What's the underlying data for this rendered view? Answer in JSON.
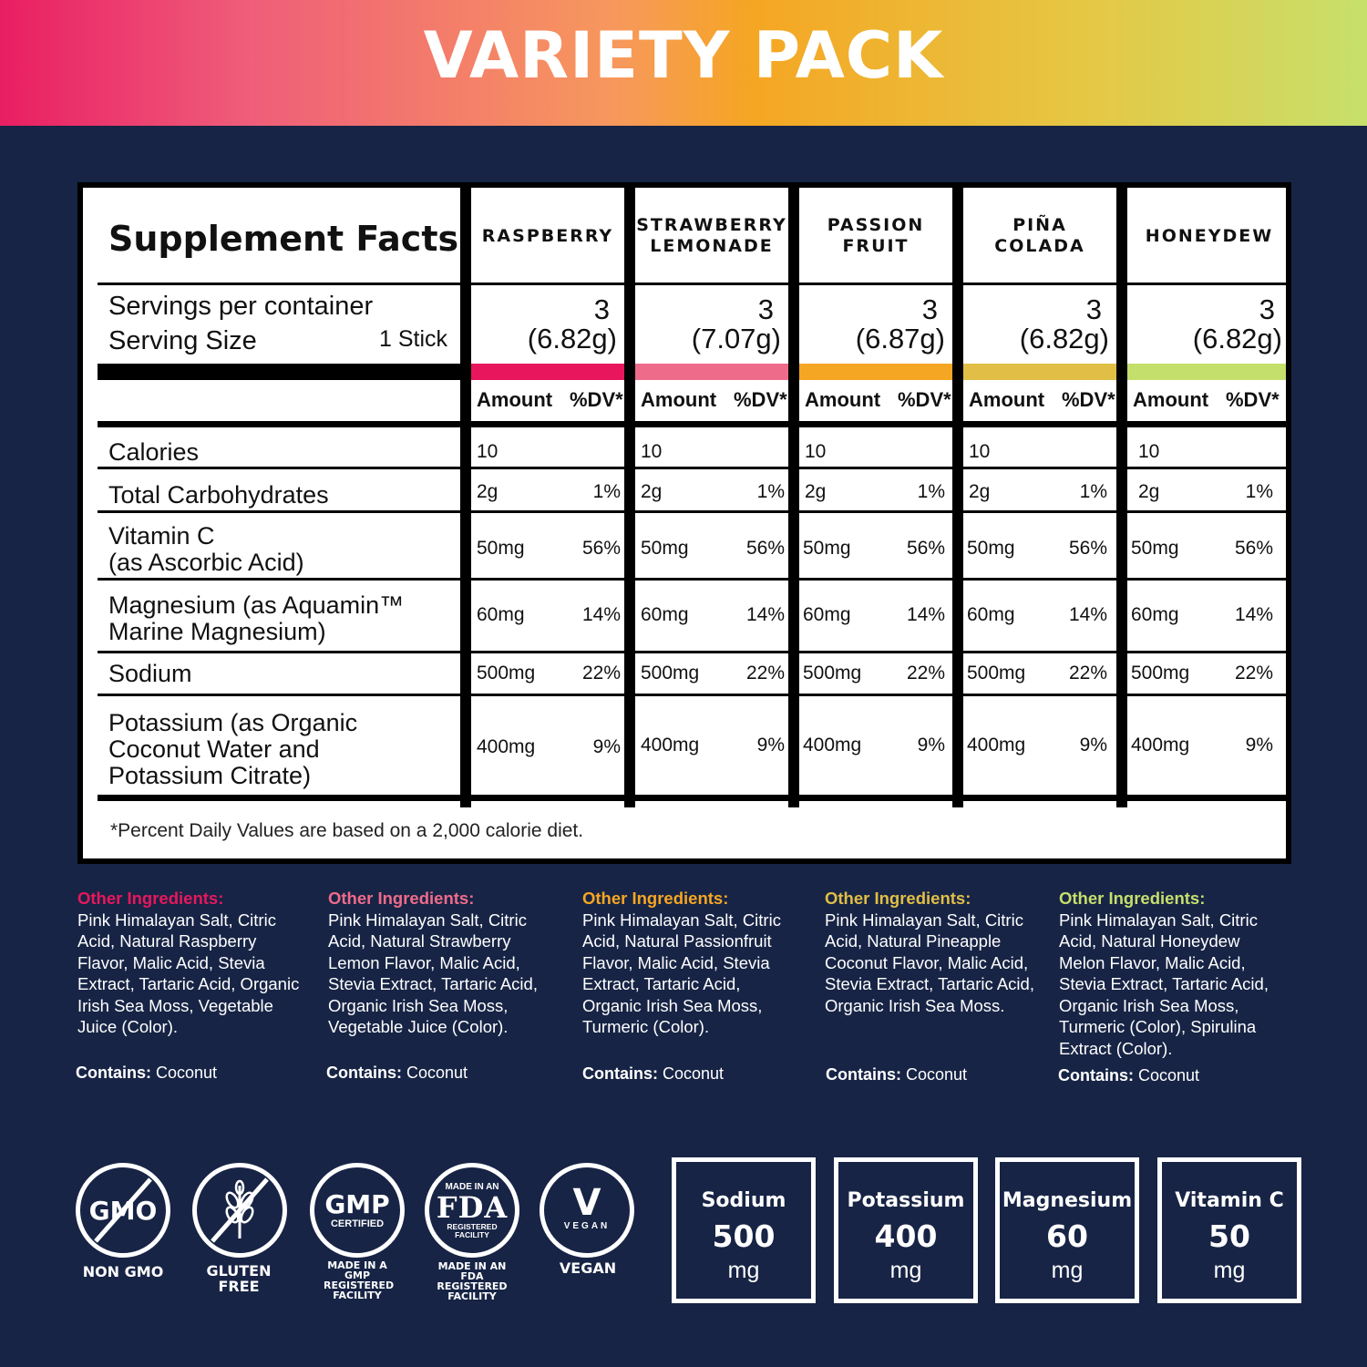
{
  "banner": {
    "title": "VARIETY PACK"
  },
  "facts": {
    "title": "Supplement Facts",
    "servings_label": "Servings per container",
    "serving_size_label": "Serving Size",
    "serving_size_value": "1 Stick",
    "amount_label": "Amount",
    "dv_label": "%DV*",
    "rows": [
      "Calories",
      "Total Carbohydrates",
      "Vitamin C",
      "(as Ascorbic Acid)",
      "Magnesium (as Aquamin™",
      "Marine Magnesium)",
      "Sodium",
      "Potassium (as Organic",
      "Coconut Water and",
      "Potassium Citrate)"
    ],
    "flavors": [
      {
        "name": "RASPBERRY",
        "servings": "3",
        "size": "(6.82g)",
        "color": "#e8175d",
        "calories": "10",
        "carbs": "2g",
        "carbs_dv": "1%",
        "vitc": "50mg",
        "vitc_dv": "56%",
        "mag": "60mg",
        "mag_dv": "14%",
        "sodium": "500mg",
        "sodium_dv": "22%",
        "potassium": "400mg",
        "potassium_dv": "9%"
      },
      {
        "name": "STRAWBERRY LEMONADE",
        "servings": "3",
        "size": "(7.07g)",
        "color": "#ef6b8a",
        "calories": "10",
        "carbs": "2g",
        "carbs_dv": "1%",
        "vitc": "50mg",
        "vitc_dv": "56%",
        "mag": "60mg",
        "mag_dv": "14%",
        "sodium": "500mg",
        "sodium_dv": "22%",
        "potassium": "400mg",
        "potassium_dv": "9%"
      },
      {
        "name": "PASSION FRUIT",
        "servings": "3",
        "size": "(6.87g)",
        "color": "#f5a623",
        "calories": "10",
        "carbs": "2g",
        "carbs_dv": "1%",
        "vitc": "50mg",
        "vitc_dv": "56%",
        "mag": "60mg",
        "mag_dv": "14%",
        "sodium": "500mg",
        "sodium_dv": "22%",
        "potassium": "400mg",
        "potassium_dv": "9%"
      },
      {
        "name": "PIÑA COLADA",
        "servings": "3",
        "size": "(6.82g)",
        "color": "#e1be45",
        "calories": "10",
        "carbs": "2g",
        "carbs_dv": "1%",
        "vitc": "50mg",
        "vitc_dv": "56%",
        "mag": "60mg",
        "mag_dv": "14%",
        "sodium": "500mg",
        "sodium_dv": "22%",
        "potassium": "400mg",
        "potassium_dv": "9%"
      },
      {
        "name": "HONEYDEW",
        "servings": "3",
        "size": "(6.82g)",
        "color": "#c5df6c",
        "calories": "10",
        "carbs": "2g",
        "carbs_dv": "1%",
        "vitc": "50mg",
        "vitc_dv": "56%",
        "mag": "60mg",
        "mag_dv": "14%",
        "sodium": "500mg",
        "sodium_dv": "22%",
        "potassium": "400mg",
        "potassium_dv": "9%"
      }
    ],
    "footnote": "*Percent Daily Values are based on a 2,000 calorie diet."
  },
  "ingredients": {
    "title": "Other Ingredients:",
    "contains_label": "Contains:",
    "contains_value": "Coconut",
    "title_colors": [
      "#e8175d",
      "#ef6b8a",
      "#f5a623",
      "#e1be45",
      "#c5df6c"
    ],
    "lists": [
      "Pink Himalayan Salt, Citric Acid, Natural Raspberry Flavor, Malic Acid, Stevia Extract, Tartaric Acid, Organic Irish Sea Moss, Vegetable Juice (Color).",
      "Pink Himalayan Salt, Citric Acid, Natural Strawberry Lemon Flavor, Malic Acid, Stevia Extract, Tartaric Acid, Organic Irish Sea Moss, Vegetable Juice (Color).",
      "Pink Himalayan Salt, Citric Acid, Natural Passionfruit Flavor, Malic Acid, Stevia Extract, Tartaric Acid, Organic Irish Sea Moss, Turmeric (Color).",
      "Pink Himalayan Salt, Citric Acid, Natural Pineapple Coconut Flavor, Malic Acid, Stevia Extract, Tartaric Acid, Organic Irish Sea Moss.",
      "Pink Himalayan Salt, Citric Acid, Natural Honeydew Melon Flavor, Malic Acid, Stevia Extract, Tartaric Acid, Organic Irish Sea Moss, Turmeric (Color), Spirulina Extract (Color)."
    ]
  },
  "badges": {
    "gmo_text": "GMO",
    "non_gmo": "NON GMO",
    "gluten_free": "GLUTEN FREE",
    "gmp_big": "GMP",
    "gmp_certified": "CERTIFIED",
    "gmp_sub": "MADE IN A GMP REGISTERED FACILITY",
    "fda_top": "MADE IN AN",
    "fda_big": "FDA",
    "fda_reg": "REGISTERED FACILITY",
    "fda_sub": "MADE IN AN FDA REGISTERED FACILITY",
    "vegan_v": "V",
    "vegan_arc": "VEGAN",
    "vegan": "VEGAN"
  },
  "nutrients": [
    {
      "name": "Sodium",
      "value": "500",
      "unit": "mg"
    },
    {
      "name": "Potassium",
      "value": "400",
      "unit": "mg"
    },
    {
      "name": "Magnesium",
      "value": "60",
      "unit": "mg"
    },
    {
      "name": "Vitamin C",
      "value": "50",
      "unit": "mg"
    }
  ]
}
